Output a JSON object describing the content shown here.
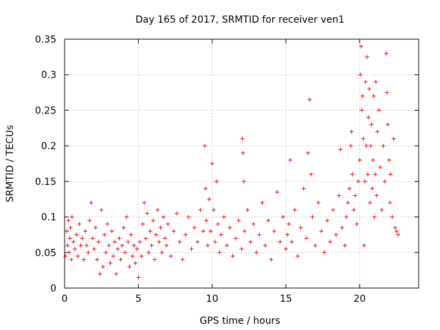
{
  "chart_data": {
    "type": "scatter",
    "title": "Day 165 of 2017, SRMTID for receiver ven1",
    "xlabel": "GPS time / hours",
    "ylabel": "SRMTID / TECUs",
    "xlim": [
      0,
      24
    ],
    "ylim": [
      0,
      0.35
    ],
    "xticks": [
      0,
      5,
      10,
      15,
      20
    ],
    "yticks": [
      0,
      0.05,
      0.1,
      0.15,
      0.2,
      0.25,
      0.3,
      0.35
    ],
    "xtick_labels": [
      "0",
      "5",
      "10",
      "15",
      "20"
    ],
    "ytick_labels": [
      "0",
      "0.05",
      "0.1",
      "0.15",
      "0.2",
      "0.25",
      "0.3",
      "0.35"
    ],
    "grid": true,
    "marker": "plus",
    "color": "#ff0000",
    "series": [
      {
        "name": "ven1",
        "points": [
          [
            0.05,
            0.045
          ],
          [
            0.15,
            0.08
          ],
          [
            0.2,
            0.06
          ],
          [
            0.25,
            0.095
          ],
          [
            0.3,
            0.05
          ],
          [
            0.35,
            0.07
          ],
          [
            0.4,
            0.085
          ],
          [
            0.45,
            0.04
          ],
          [
            0.5,
            0.1
          ],
          [
            0.6,
            0.065
          ],
          [
            0.7,
            0.055
          ],
          [
            0.8,
            0.075
          ],
          [
            0.9,
            0.045
          ],
          [
            1.0,
            0.09
          ],
          [
            1.1,
            0.06
          ],
          [
            1.2,
            0.07
          ],
          [
            1.3,
            0.04
          ],
          [
            1.4,
            0.08
          ],
          [
            1.5,
            0.06
          ],
          [
            1.6,
            0.05
          ],
          [
            1.7,
            0.095
          ],
          [
            1.8,
            0.12
          ],
          [
            1.9,
            0.07
          ],
          [
            2.0,
            0.055
          ],
          [
            2.1,
            0.085
          ],
          [
            2.2,
            0.04
          ],
          [
            2.3,
            0.065
          ],
          [
            2.4,
            0.02
          ],
          [
            2.5,
            0.11
          ],
          [
            2.6,
            0.03
          ],
          [
            2.7,
            0.075
          ],
          [
            2.8,
            0.05
          ],
          [
            2.9,
            0.09
          ],
          [
            3.0,
            0.06
          ],
          [
            3.1,
            0.035
          ],
          [
            3.2,
            0.08
          ],
          [
            3.3,
            0.045
          ],
          [
            3.4,
            0.065
          ],
          [
            3.5,
            0.02
          ],
          [
            3.6,
            0.055
          ],
          [
            3.7,
            0.07
          ],
          [
            3.8,
            0.04
          ],
          [
            3.9,
            0.06
          ],
          [
            4.0,
            0.085
          ],
          [
            4.1,
            0.05
          ],
          [
            4.2,
            0.1
          ],
          [
            4.3,
            0.065
          ],
          [
            4.4,
            0.03
          ],
          [
            4.5,
            0.075
          ],
          [
            4.6,
            0.045
          ],
          [
            4.7,
            0.06
          ],
          [
            4.8,
            0.035
          ],
          [
            4.9,
            0.055
          ],
          [
            5.0,
            0.015
          ],
          [
            5.1,
            0.065
          ],
          [
            5.2,
            0.045
          ],
          [
            5.3,
            0.09
          ],
          [
            5.4,
            0.12
          ],
          [
            5.5,
            0.07
          ],
          [
            5.6,
            0.105
          ],
          [
            5.7,
            0.05
          ],
          [
            5.8,
            0.08
          ],
          [
            5.9,
            0.06
          ],
          [
            6.0,
            0.095
          ],
          [
            6.1,
            0.04
          ],
          [
            6.2,
            0.075
          ],
          [
            6.3,
            0.11
          ],
          [
            6.4,
            0.065
          ],
          [
            6.5,
            0.085
          ],
          [
            6.6,
            0.05
          ],
          [
            6.7,
            0.1
          ],
          [
            6.8,
            0.07
          ],
          [
            6.9,
            0.06
          ],
          [
            7.0,
            0.09
          ],
          [
            7.2,
            0.045
          ],
          [
            7.4,
            0.08
          ],
          [
            7.6,
            0.105
          ],
          [
            7.8,
            0.065
          ],
          [
            8.0,
            0.04
          ],
          [
            8.2,
            0.075
          ],
          [
            8.4,
            0.1
          ],
          [
            8.6,
            0.055
          ],
          [
            8.8,
            0.085
          ],
          [
            9.0,
            0.065
          ],
          [
            9.2,
            0.11
          ],
          [
            9.4,
            0.08
          ],
          [
            9.5,
            0.2
          ],
          [
            9.55,
            0.14
          ],
          [
            9.6,
            0.095
          ],
          [
            9.7,
            0.06
          ],
          [
            9.8,
            0.125
          ],
          [
            9.9,
            0.08
          ],
          [
            10.0,
            0.175
          ],
          [
            10.1,
            0.11
          ],
          [
            10.2,
            0.065
          ],
          [
            10.3,
            0.15
          ],
          [
            10.4,
            0.09
          ],
          [
            10.5,
            0.05
          ],
          [
            10.6,
            0.075
          ],
          [
            10.8,
            0.1
          ],
          [
            11.0,
            0.06
          ],
          [
            11.2,
            0.085
          ],
          [
            11.4,
            0.045
          ],
          [
            11.6,
            0.07
          ],
          [
            11.8,
            0.095
          ],
          [
            12.0,
            0.055
          ],
          [
            12.05,
            0.21
          ],
          [
            12.1,
            0.19
          ],
          [
            12.15,
            0.15
          ],
          [
            12.2,
            0.08
          ],
          [
            12.4,
            0.11
          ],
          [
            12.6,
            0.065
          ],
          [
            12.8,
            0.09
          ],
          [
            13.0,
            0.05
          ],
          [
            13.2,
            0.075
          ],
          [
            13.4,
            0.12
          ],
          [
            13.6,
            0.06
          ],
          [
            13.8,
            0.095
          ],
          [
            14.0,
            0.04
          ],
          [
            14.2,
            0.08
          ],
          [
            14.4,
            0.135
          ],
          [
            14.6,
            0.065
          ],
          [
            14.8,
            0.1
          ],
          [
            15.0,
            0.055
          ],
          [
            15.1,
            0.075
          ],
          [
            15.2,
            0.09
          ],
          [
            15.3,
            0.18
          ],
          [
            15.4,
            0.065
          ],
          [
            15.6,
            0.11
          ],
          [
            15.8,
            0.045
          ],
          [
            16.0,
            0.085
          ],
          [
            16.2,
            0.14
          ],
          [
            16.4,
            0.07
          ],
          [
            16.5,
            0.19
          ],
          [
            16.6,
            0.265
          ],
          [
            16.7,
            0.16
          ],
          [
            16.8,
            0.1
          ],
          [
            17.0,
            0.06
          ],
          [
            17.2,
            0.12
          ],
          [
            17.4,
            0.08
          ],
          [
            17.6,
            0.05
          ],
          [
            17.8,
            0.095
          ],
          [
            18.0,
            0.065
          ],
          [
            18.2,
            0.11
          ],
          [
            18.4,
            0.075
          ],
          [
            18.6,
            0.13
          ],
          [
            18.7,
            0.195
          ],
          [
            18.8,
            0.085
          ],
          [
            19.0,
            0.06
          ],
          [
            19.1,
            0.1
          ],
          [
            19.2,
            0.12
          ],
          [
            19.3,
            0.14
          ],
          [
            19.4,
            0.2
          ],
          [
            19.45,
            0.22
          ],
          [
            19.5,
            0.16
          ],
          [
            19.6,
            0.11
          ],
          [
            19.7,
            0.13
          ],
          [
            19.8,
            0.09
          ],
          [
            19.9,
            0.15
          ],
          [
            20.0,
            0.18
          ],
          [
            20.05,
            0.3
          ],
          [
            20.1,
            0.34
          ],
          [
            20.15,
            0.25
          ],
          [
            20.2,
            0.27
          ],
          [
            20.25,
            0.21
          ],
          [
            20.3,
            0.06
          ],
          [
            20.35,
            0.15
          ],
          [
            20.4,
            0.29
          ],
          [
            20.45,
            0.2
          ],
          [
            20.5,
            0.325
          ],
          [
            20.55,
            0.16
          ],
          [
            20.6,
            0.24
          ],
          [
            20.65,
            0.28
          ],
          [
            20.7,
            0.12
          ],
          [
            20.75,
            0.2
          ],
          [
            20.8,
            0.23
          ],
          [
            20.85,
            0.14
          ],
          [
            20.9,
            0.18
          ],
          [
            20.95,
            0.27
          ],
          [
            21.0,
            0.1
          ],
          [
            21.05,
            0.16
          ],
          [
            21.1,
            0.29
          ],
          [
            21.15,
            0.13
          ],
          [
            21.2,
            0.22
          ],
          [
            21.3,
            0.25
          ],
          [
            21.4,
            0.17
          ],
          [
            21.5,
            0.11
          ],
          [
            21.6,
            0.2
          ],
          [
            21.7,
            0.15
          ],
          [
            21.8,
            0.33
          ],
          [
            21.85,
            0.275
          ],
          [
            21.9,
            0.23
          ],
          [
            22.0,
            0.18
          ],
          [
            22.05,
            0.12
          ],
          [
            22.1,
            0.16
          ],
          [
            22.2,
            0.1
          ],
          [
            22.3,
            0.21
          ],
          [
            22.4,
            0.085
          ],
          [
            22.5,
            0.08
          ],
          [
            22.6,
            0.075
          ]
        ]
      }
    ]
  }
}
